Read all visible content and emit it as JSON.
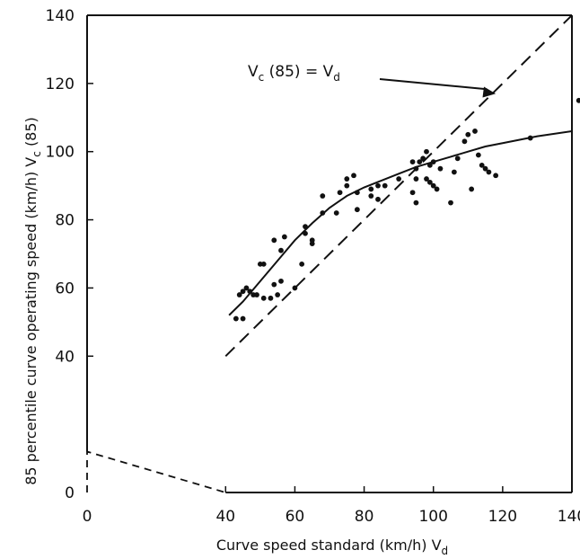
{
  "chart_data": {
    "type": "scatter",
    "xlabel": "Curve speed standard (km/h) V",
    "xlabel_sub": "d",
    "ylabel": "85 percentile curve operating speed (km/h) V",
    "ylabel_sub": "c",
    "ylabel_suffix": " (85)",
    "xlim": [
      0,
      140
    ],
    "ylim": [
      0,
      140
    ],
    "xticks": [
      0,
      40,
      60,
      80,
      100,
      120,
      140
    ],
    "yticks": [
      0,
      40,
      60,
      80,
      100,
      120,
      140
    ],
    "grid": false,
    "annotation": {
      "parts": [
        "V",
        "c",
        " (85) = V",
        "d"
      ],
      "arrow_to": [
        118,
        117
      ]
    },
    "series": [
      {
        "kind": "points",
        "points": [
          [
            43,
            51
          ],
          [
            44,
            58
          ],
          [
            45,
            51
          ],
          [
            45,
            59
          ],
          [
            46,
            60
          ],
          [
            47,
            59
          ],
          [
            48,
            58
          ],
          [
            49,
            58
          ],
          [
            50,
            67
          ],
          [
            51,
            57
          ],
          [
            51,
            67
          ],
          [
            53,
            57
          ],
          [
            54,
            61
          ],
          [
            54,
            74
          ],
          [
            55,
            58
          ],
          [
            56,
            62
          ],
          [
            56,
            71
          ],
          [
            57,
            75
          ],
          [
            60,
            60
          ],
          [
            62,
            67
          ],
          [
            63,
            76
          ],
          [
            63,
            78
          ],
          [
            65,
            73
          ],
          [
            65,
            74
          ],
          [
            68,
            82
          ],
          [
            68,
            87
          ],
          [
            72,
            82
          ],
          [
            73,
            88
          ],
          [
            75,
            90
          ],
          [
            75,
            92
          ],
          [
            77,
            93
          ],
          [
            78,
            83
          ],
          [
            78,
            88
          ],
          [
            82,
            87
          ],
          [
            82,
            89
          ],
          [
            84,
            86
          ],
          [
            84,
            90
          ],
          [
            86,
            90
          ],
          [
            90,
            92
          ],
          [
            94,
            88
          ],
          [
            94,
            97
          ],
          [
            95,
            95
          ],
          [
            95,
            92
          ],
          [
            95,
            85
          ],
          [
            96,
            97
          ],
          [
            97,
            98
          ],
          [
            98,
            92
          ],
          [
            98,
            100
          ],
          [
            99,
            91
          ],
          [
            99,
            96
          ],
          [
            100,
            90
          ],
          [
            100,
            97
          ],
          [
            101,
            89
          ],
          [
            102,
            95
          ],
          [
            105,
            85
          ],
          [
            106,
            94
          ],
          [
            107,
            98
          ],
          [
            109,
            103
          ],
          [
            110,
            105
          ],
          [
            111,
            89
          ],
          [
            112,
            106
          ],
          [
            113,
            99
          ],
          [
            114,
            96
          ],
          [
            115,
            95
          ],
          [
            116,
            94
          ],
          [
            118,
            93
          ],
          [
            128,
            104
          ],
          [
            142,
            115
          ]
        ]
      },
      {
        "kind": "fitted-curve",
        "points": [
          [
            41,
            52
          ],
          [
            45,
            56
          ],
          [
            50,
            62
          ],
          [
            55,
            68
          ],
          [
            60,
            74
          ],
          [
            65,
            79
          ],
          [
            70,
            83.5
          ],
          [
            75,
            87
          ],
          [
            80,
            89.5
          ],
          [
            85,
            91.5
          ],
          [
            90,
            93.5
          ],
          [
            95,
            95.5
          ],
          [
            100,
            97
          ],
          [
            105,
            98.5
          ],
          [
            110,
            100
          ],
          [
            115,
            101.5
          ],
          [
            120,
            102.5
          ],
          [
            130,
            104.5
          ],
          [
            140,
            106
          ]
        ]
      },
      {
        "kind": "dashed-line",
        "points": [
          [
            40,
            40
          ],
          [
            140,
            140
          ]
        ]
      },
      {
        "kind": "dashed-extension",
        "points": [
          [
            0,
            0
          ],
          [
            0,
            12
          ],
          [
            40,
            0
          ]
        ]
      }
    ]
  }
}
